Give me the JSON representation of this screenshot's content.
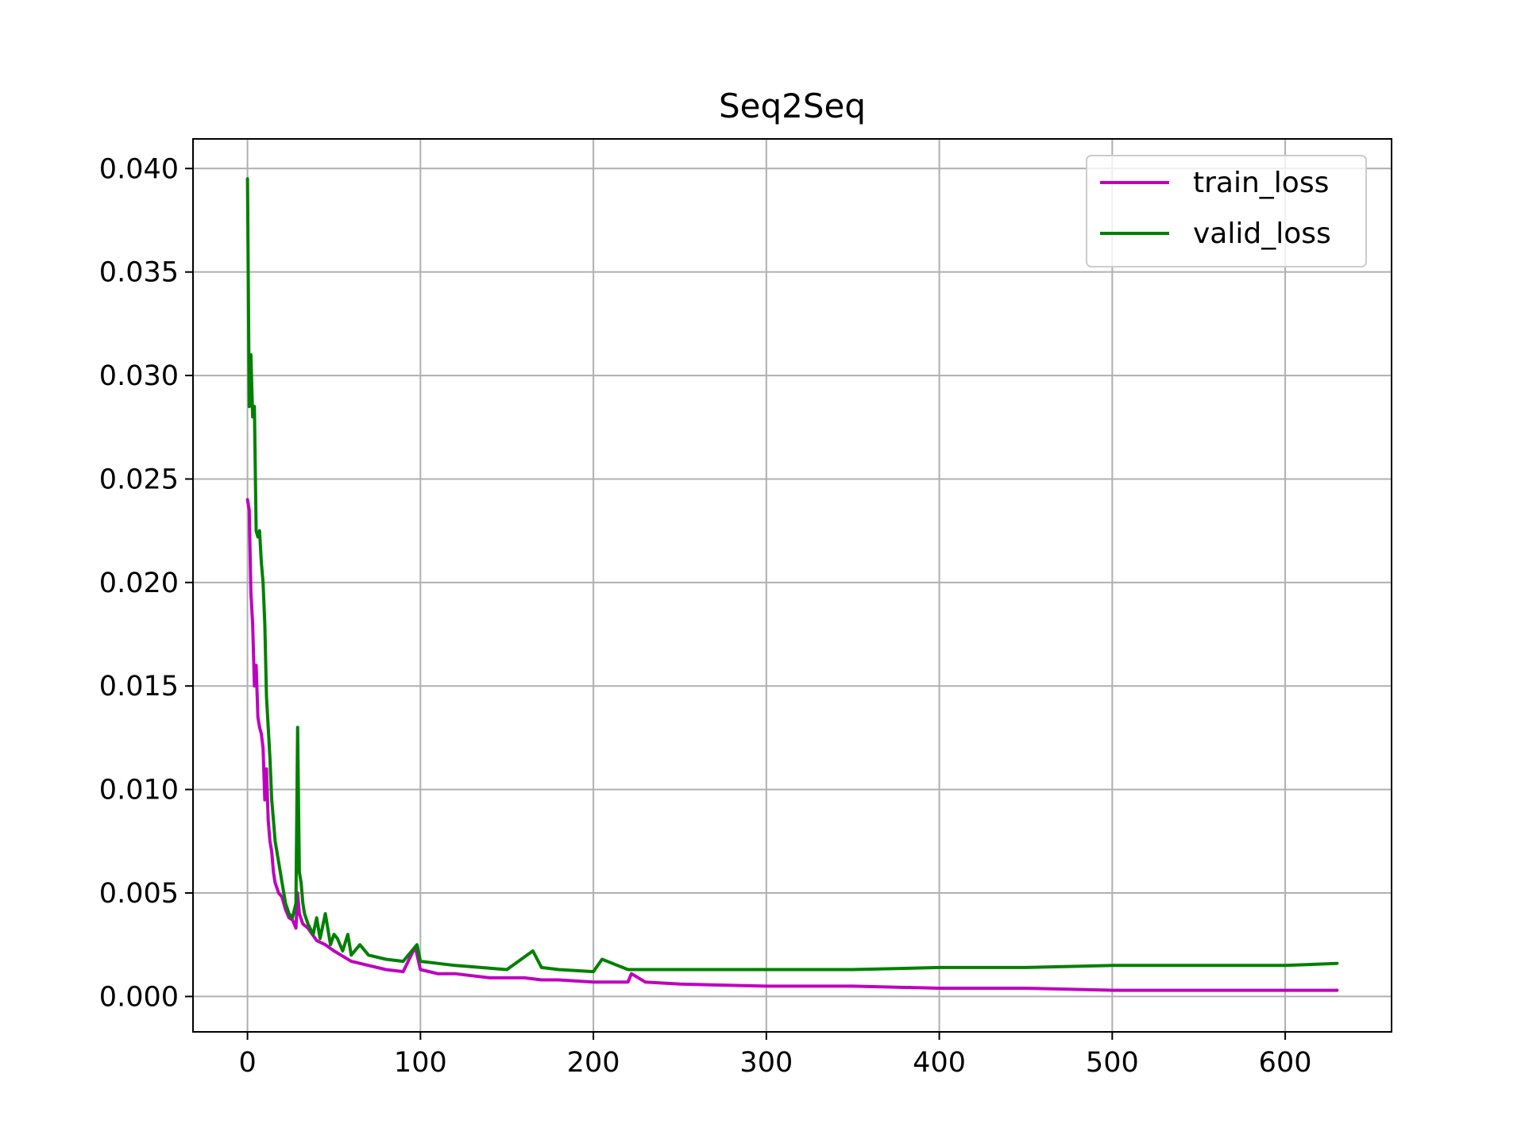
{
  "chart_data": {
    "type": "line",
    "title": "Seq2Seq",
    "xlabel": "",
    "ylabel": "",
    "xlim": [
      -31.5,
      661.5
    ],
    "ylim": [
      -0.00171,
      0.04143
    ],
    "xticks": [
      0,
      100,
      200,
      300,
      400,
      500,
      600
    ],
    "xtick_labels": [
      "0",
      "100",
      "200",
      "300",
      "400",
      "500",
      "600"
    ],
    "yticks": [
      0.0,
      0.005,
      0.01,
      0.015,
      0.02,
      0.025,
      0.03,
      0.035,
      0.04
    ],
    "ytick_labels": [
      "0.000",
      "0.005",
      "0.010",
      "0.015",
      "0.020",
      "0.025",
      "0.030",
      "0.035",
      "0.040"
    ],
    "grid": true,
    "legend_position": "top-right",
    "series": [
      {
        "name": "train_loss",
        "color": "#bf00bf",
        "x": [
          0,
          1,
          2,
          3,
          4,
          5,
          6,
          7,
          8,
          9,
          10,
          11,
          12,
          13,
          14,
          15,
          16,
          18,
          20,
          22,
          24,
          26,
          28,
          29,
          30,
          32,
          35,
          40,
          45,
          50,
          60,
          70,
          80,
          90,
          97,
          100,
          110,
          120,
          130,
          140,
          150,
          160,
          170,
          180,
          200,
          220,
          222,
          230,
          250,
          300,
          350,
          400,
          450,
          500,
          550,
          600,
          630
        ],
        "values": [
          0.024,
          0.0235,
          0.0195,
          0.018,
          0.015,
          0.016,
          0.0135,
          0.013,
          0.0127,
          0.012,
          0.0095,
          0.011,
          0.0085,
          0.0075,
          0.007,
          0.006,
          0.0055,
          0.005,
          0.0048,
          0.0042,
          0.0038,
          0.0037,
          0.0033,
          0.005,
          0.004,
          0.0035,
          0.0033,
          0.0027,
          0.0025,
          0.0022,
          0.0017,
          0.0015,
          0.0013,
          0.0012,
          0.0024,
          0.0013,
          0.0011,
          0.0011,
          0.001,
          0.0009,
          0.0009,
          0.0009,
          0.0008,
          0.0008,
          0.0007,
          0.0007,
          0.0011,
          0.0007,
          0.0006,
          0.0005,
          0.0005,
          0.0004,
          0.0004,
          0.0003,
          0.0003,
          0.0003,
          0.0003
        ]
      },
      {
        "name": "valid_loss",
        "color": "#008000",
        "x": [
          0,
          1,
          2,
          3,
          4,
          5,
          6,
          7,
          8,
          9,
          10,
          11,
          12,
          13,
          14,
          15,
          16,
          18,
          20,
          22,
          24,
          26,
          28,
          29,
          30,
          31,
          32,
          33,
          35,
          38,
          40,
          42,
          45,
          48,
          50,
          52,
          55,
          58,
          60,
          65,
          70,
          80,
          90,
          98,
          100,
          110,
          120,
          135,
          150,
          165,
          170,
          180,
          200,
          205,
          220,
          250,
          300,
          350,
          400,
          450,
          500,
          550,
          600,
          630
        ],
        "values": [
          0.0395,
          0.0285,
          0.031,
          0.028,
          0.0285,
          0.0225,
          0.0222,
          0.0225,
          0.021,
          0.02,
          0.018,
          0.0145,
          0.013,
          0.0115,
          0.0095,
          0.0085,
          0.0075,
          0.0065,
          0.0055,
          0.0045,
          0.004,
          0.0038,
          0.0045,
          0.013,
          0.006,
          0.0055,
          0.0045,
          0.004,
          0.0035,
          0.003,
          0.0038,
          0.0028,
          0.004,
          0.0025,
          0.003,
          0.0028,
          0.0022,
          0.003,
          0.002,
          0.0025,
          0.002,
          0.0018,
          0.0017,
          0.0025,
          0.0017,
          0.0016,
          0.0015,
          0.0014,
          0.0013,
          0.0022,
          0.0014,
          0.0013,
          0.0012,
          0.0018,
          0.0013,
          0.0013,
          0.0013,
          0.0013,
          0.0014,
          0.0014,
          0.0015,
          0.0015,
          0.0015,
          0.0016
        ]
      }
    ]
  }
}
